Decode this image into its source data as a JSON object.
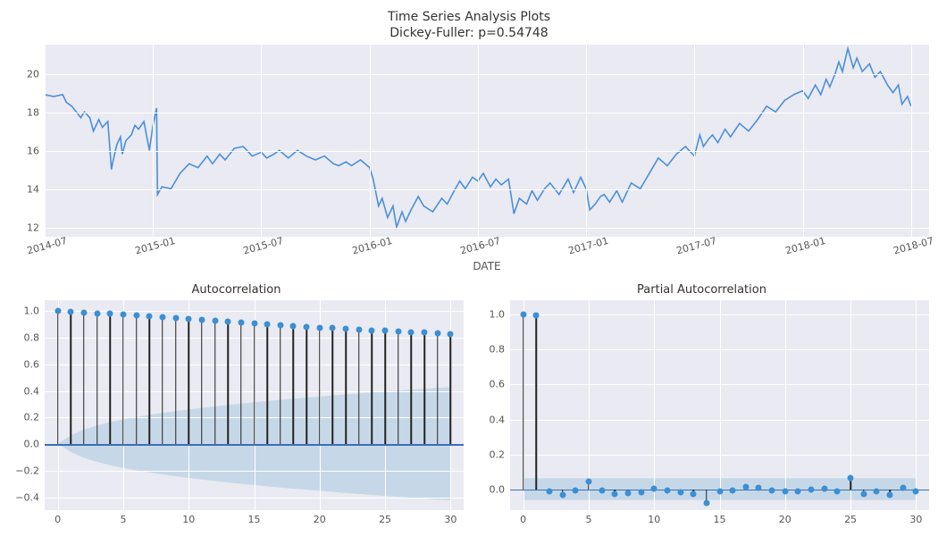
{
  "colors": {
    "panel_bg": "#eaeaf2",
    "grid": "#ffffff",
    "line": "#4a90d9",
    "text": "#555555",
    "title": "#333333",
    "stem": "#222222",
    "dot": "#3b8fd4",
    "zero_line": "#3b6fb6",
    "ci_fill": "#a8c8e0",
    "ci_opacity": 0.55
  },
  "top": {
    "title_line1": "Time Series Analysis Plots",
    "title_line2": "Dickey-Fuller: p=0.54748",
    "xlabel": "DATE",
    "yticks": [
      12,
      14,
      16,
      18,
      20
    ],
    "ylim": [
      11.5,
      21.5
    ],
    "xticks": [
      "2014-07",
      "2015-01",
      "2015-07",
      "2016-01",
      "2016-07",
      "2017-01",
      "2017-07",
      "2018-01",
      "2018-07"
    ],
    "xlim_months": [
      0,
      49
    ],
    "series": [
      [
        0,
        18.9
      ],
      [
        0.5,
        18.8
      ],
      [
        1,
        18.9
      ],
      [
        1.2,
        18.5
      ],
      [
        1.5,
        18.3
      ],
      [
        2,
        17.7
      ],
      [
        2.2,
        18.0
      ],
      [
        2.5,
        17.7
      ],
      [
        2.7,
        17.0
      ],
      [
        3,
        17.6
      ],
      [
        3.2,
        17.2
      ],
      [
        3.5,
        17.5
      ],
      [
        3.7,
        15.0
      ],
      [
        3.8,
        15.5
      ],
      [
        4,
        16.3
      ],
      [
        4.2,
        16.7
      ],
      [
        4.3,
        15.8
      ],
      [
        4.5,
        16.5
      ],
      [
        4.8,
        16.8
      ],
      [
        5,
        17.3
      ],
      [
        5.2,
        17.1
      ],
      [
        5.5,
        17.5
      ],
      [
        5.7,
        16.5
      ],
      [
        5.8,
        16.0
      ],
      [
        6,
        17.3
      ],
      [
        6.2,
        18.2
      ],
      [
        6.25,
        13.7
      ],
      [
        6.5,
        14.1
      ],
      [
        7,
        14.0
      ],
      [
        7.5,
        14.8
      ],
      [
        8,
        15.3
      ],
      [
        8.5,
        15.1
      ],
      [
        9,
        15.7
      ],
      [
        9.3,
        15.3
      ],
      [
        9.7,
        15.8
      ],
      [
        10,
        15.5
      ],
      [
        10.5,
        16.1
      ],
      [
        11,
        16.2
      ],
      [
        11.5,
        15.7
      ],
      [
        12,
        15.9
      ],
      [
        12.3,
        15.6
      ],
      [
        12.7,
        15.8
      ],
      [
        13,
        16.0
      ],
      [
        13.5,
        15.6
      ],
      [
        14,
        16.0
      ],
      [
        14.5,
        15.7
      ],
      [
        15,
        15.5
      ],
      [
        15.5,
        15.7
      ],
      [
        16,
        15.3
      ],
      [
        16.3,
        15.2
      ],
      [
        16.7,
        15.4
      ],
      [
        17,
        15.2
      ],
      [
        17.5,
        15.5
      ],
      [
        18,
        15.1
      ],
      [
        18.2,
        14.5
      ],
      [
        18.5,
        13.1
      ],
      [
        18.7,
        13.5
      ],
      [
        19,
        12.5
      ],
      [
        19.3,
        13.1
      ],
      [
        19.5,
        12.0
      ],
      [
        19.8,
        12.8
      ],
      [
        20,
        12.3
      ],
      [
        20.3,
        12.9
      ],
      [
        20.7,
        13.6
      ],
      [
        21,
        13.1
      ],
      [
        21.5,
        12.8
      ],
      [
        22,
        13.5
      ],
      [
        22.3,
        13.2
      ],
      [
        22.7,
        13.9
      ],
      [
        23,
        14.4
      ],
      [
        23.3,
        14.0
      ],
      [
        23.7,
        14.6
      ],
      [
        24,
        14.4
      ],
      [
        24.3,
        14.8
      ],
      [
        24.7,
        14.1
      ],
      [
        25,
        14.5
      ],
      [
        25.3,
        14.2
      ],
      [
        25.7,
        14.5
      ],
      [
        26,
        12.7
      ],
      [
        26.3,
        13.5
      ],
      [
        26.7,
        13.2
      ],
      [
        27,
        13.9
      ],
      [
        27.3,
        13.4
      ],
      [
        27.7,
        14.0
      ],
      [
        28,
        14.3
      ],
      [
        28.5,
        13.7
      ],
      [
        29,
        14.5
      ],
      [
        29.3,
        13.8
      ],
      [
        29.7,
        14.6
      ],
      [
        30,
        14.0
      ],
      [
        30.2,
        12.9
      ],
      [
        30.5,
        13.2
      ],
      [
        30.8,
        13.6
      ],
      [
        31,
        13.7
      ],
      [
        31.3,
        13.3
      ],
      [
        31.7,
        13.9
      ],
      [
        32,
        13.3
      ],
      [
        32.5,
        14.3
      ],
      [
        33,
        14.0
      ],
      [
        33.5,
        14.8
      ],
      [
        34,
        15.6
      ],
      [
        34.5,
        15.2
      ],
      [
        35,
        15.8
      ],
      [
        35.5,
        16.2
      ],
      [
        36,
        15.7
      ],
      [
        36.3,
        16.8
      ],
      [
        36.5,
        16.2
      ],
      [
        36.8,
        16.6
      ],
      [
        37,
        16.8
      ],
      [
        37.3,
        16.4
      ],
      [
        37.7,
        17.1
      ],
      [
        38,
        16.7
      ],
      [
        38.5,
        17.4
      ],
      [
        39,
        17.0
      ],
      [
        39.5,
        17.6
      ],
      [
        40,
        18.3
      ],
      [
        40.5,
        18.0
      ],
      [
        41,
        18.6
      ],
      [
        41.5,
        18.9
      ],
      [
        42,
        19.1
      ],
      [
        42.3,
        18.7
      ],
      [
        42.7,
        19.4
      ],
      [
        43,
        18.9
      ],
      [
        43.3,
        19.7
      ],
      [
        43.5,
        19.3
      ],
      [
        43.8,
        20.0
      ],
      [
        44,
        20.6
      ],
      [
        44.2,
        20.1
      ],
      [
        44.5,
        21.3
      ],
      [
        44.8,
        20.3
      ],
      [
        45,
        20.8
      ],
      [
        45.3,
        20.1
      ],
      [
        45.7,
        20.5
      ],
      [
        46,
        19.8
      ],
      [
        46.3,
        20.1
      ],
      [
        46.7,
        19.4
      ],
      [
        47,
        19.0
      ],
      [
        47.3,
        19.4
      ],
      [
        47.5,
        18.4
      ],
      [
        47.8,
        18.8
      ],
      [
        48,
        18.3
      ]
    ]
  },
  "acf": {
    "title": "Autocorrelation",
    "ylim": [
      -0.5,
      1.08
    ],
    "yticks": [
      -0.4,
      -0.2,
      0.0,
      0.2,
      0.4,
      0.6,
      0.8,
      1.0
    ],
    "ytick_labels": [
      "−0.4",
      "−0.2",
      "0.0",
      "0.2",
      "0.4",
      "0.6",
      "0.8",
      "1.0"
    ],
    "xlim": [
      -1,
      31
    ],
    "xticks": [
      0,
      5,
      10,
      15,
      20,
      25,
      30
    ],
    "values": [
      1.0,
      0.995,
      0.99,
      0.985,
      0.98,
      0.975,
      0.97,
      0.963,
      0.957,
      0.95,
      0.943,
      0.937,
      0.93,
      0.923,
      0.917,
      0.91,
      0.903,
      0.897,
      0.89,
      0.883,
      0.877,
      0.873,
      0.868,
      0.862,
      0.857,
      0.853,
      0.848,
      0.843,
      0.838,
      0.833,
      0.828
    ],
    "ci": [
      0,
      0.062,
      0.107,
      0.138,
      0.162,
      0.183,
      0.201,
      0.217,
      0.232,
      0.245,
      0.258,
      0.27,
      0.281,
      0.292,
      0.302,
      0.312,
      0.321,
      0.33,
      0.339,
      0.347,
      0.355,
      0.363,
      0.371,
      0.378,
      0.386,
      0.393,
      0.4,
      0.407,
      0.413,
      0.42,
      0.426
    ]
  },
  "pacf": {
    "title": "Partial Autocorrelation",
    "ylim": [
      -0.12,
      1.08
    ],
    "yticks": [
      0.0,
      0.2,
      0.4,
      0.6,
      0.8,
      1.0
    ],
    "ytick_labels": [
      "0.0",
      "0.2",
      "0.4",
      "0.6",
      "0.8",
      "1.0"
    ],
    "xlim": [
      -1,
      31
    ],
    "xticks": [
      0,
      5,
      10,
      15,
      20,
      25,
      30
    ],
    "values": [
      1.0,
      0.995,
      -0.01,
      -0.033,
      -0.005,
      0.045,
      -0.007,
      -0.025,
      -0.02,
      -0.015,
      0.003,
      -0.007,
      -0.015,
      -0.025,
      -0.075,
      -0.01,
      -0.008,
      0.015,
      0.01,
      -0.005,
      -0.013,
      -0.013,
      -0.003,
      0.007,
      -0.01,
      0.067,
      -0.025,
      -0.01,
      -0.033,
      0.01,
      -0.01
    ],
    "ci_const": 0.062
  }
}
